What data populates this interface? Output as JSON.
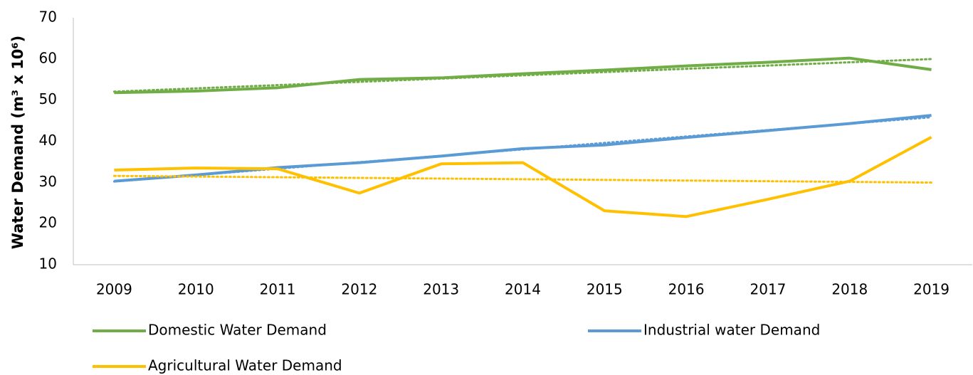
{
  "chart_data": {
    "type": "line",
    "y_label": "Water Demand (m³ x 10⁶)",
    "categories": [
      "2009",
      "2010",
      "2011",
      "2012",
      "2013",
      "2014",
      "2015",
      "2016",
      "2017",
      "2018",
      "2019"
    ],
    "series": [
      {
        "name": "Domestic Water Demand",
        "color": "#70ad47",
        "values": [
          51.8,
          52.2,
          53,
          55,
          55.4,
          56.4,
          57.3,
          58.3,
          59.2,
          60.2,
          57.4
        ]
      },
      {
        "name": "Industrial water Demand",
        "color": "#5b9bd5",
        "values": [
          30.3,
          31.8,
          33.6,
          34.8,
          36.4,
          38.2,
          39.1,
          40.9,
          42.6,
          44.3,
          46.3
        ]
      },
      {
        "name": "Agricultural Water Demand",
        "color": "#ffc000",
        "values": [
          33,
          33.5,
          33.3,
          27.4,
          34.5,
          34.8,
          23.1,
          21.7,
          25.9,
          30.3,
          41
        ]
      }
    ],
    "ylim": [
      10,
      70
    ],
    "yticks": [
      10,
      20,
      30,
      40,
      50,
      60,
      70
    ],
    "trendline": "linear",
    "grid": false
  }
}
